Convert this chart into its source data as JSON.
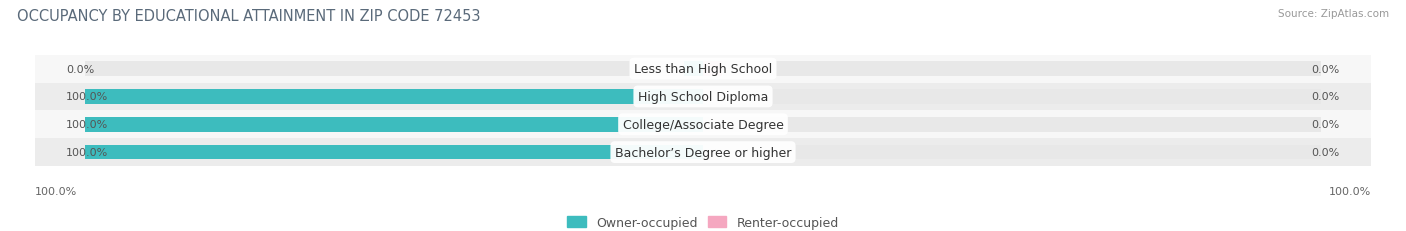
{
  "title": "OCCUPANCY BY EDUCATIONAL ATTAINMENT IN ZIP CODE 72453",
  "source": "Source: ZipAtlas.com",
  "categories": [
    "Less than High School",
    "High School Diploma",
    "College/Associate Degree",
    "Bachelor’s Degree or higher"
  ],
  "owner_values": [
    0.0,
    100.0,
    100.0,
    100.0
  ],
  "renter_values": [
    0.0,
    0.0,
    0.0,
    0.0
  ],
  "owner_color": "#3dbcbe",
  "renter_color": "#f5a7c0",
  "bar_bg_color": "#e8e8e8",
  "row_bg_even": "#f7f7f7",
  "row_bg_odd": "#ececec",
  "title_fontsize": 10.5,
  "label_fontsize": 9,
  "value_fontsize": 8,
  "legend_fontsize": 9,
  "source_fontsize": 7.5,
  "bar_height": 0.52,
  "figsize": [
    14.06,
    2.32
  ],
  "dpi": 100,
  "left_tick_label": "100.0%",
  "right_tick_label": "100.0%"
}
